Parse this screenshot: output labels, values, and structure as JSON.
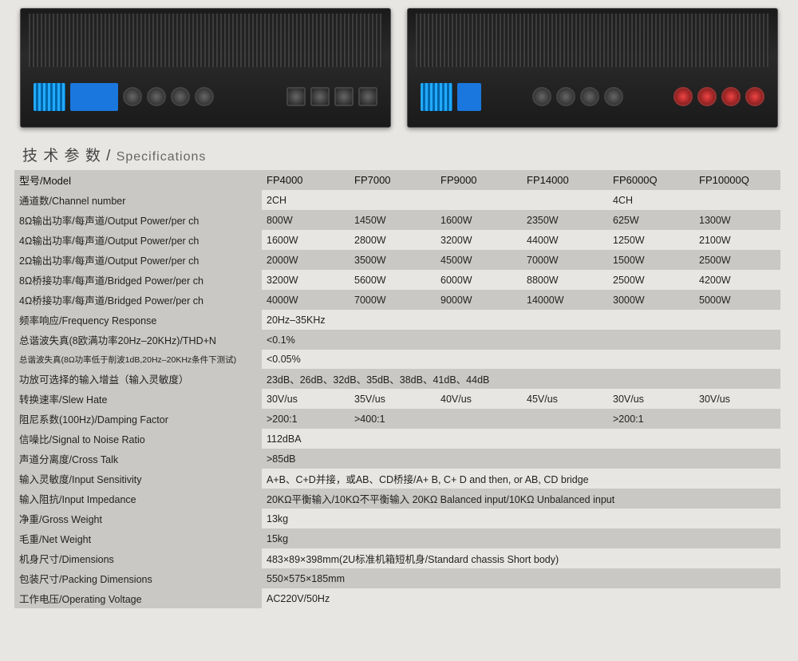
{
  "title_cn": "技 术 参 数",
  "title_sep": " / ",
  "title_en": "Specifications",
  "columns": [
    "FP4000",
    "FP7000",
    "FP9000",
    "FP14000",
    "FP6000Q",
    "FP10000Q"
  ],
  "rows": [
    {
      "label": "型号/Model",
      "vals": [
        "FP4000",
        "FP7000",
        "FP9000",
        "FP14000",
        "FP6000Q",
        "FP10000Q"
      ],
      "band": true,
      "header": true
    },
    {
      "label": "通道数/Channel number",
      "vals": [
        "2CH",
        "",
        "",
        "",
        "4CH",
        ""
      ]
    },
    {
      "label": "8Ω输出功率/每声道/Output Power/per ch",
      "vals": [
        "800W",
        "1450W",
        "1600W",
        "2350W",
        "625W",
        "1300W"
      ],
      "band": true
    },
    {
      "label": "4Ω输出功率/每声道/Output Power/per ch",
      "vals": [
        "1600W",
        "2800W",
        "3200W",
        "4400W",
        "1250W",
        "2100W"
      ]
    },
    {
      "label": "2Ω输出功率/每声道/Output Power/per ch",
      "vals": [
        "2000W",
        "3500W",
        "4500W",
        "7000W",
        "1500W",
        "2500W"
      ],
      "band": true
    },
    {
      "label": "8Ω桥接功率/每声道/Bridged Power/per ch",
      "vals": [
        "3200W",
        "5600W",
        "6000W",
        "8800W",
        "2500W",
        "4200W"
      ]
    },
    {
      "label": "4Ω桥接功率/每声道/Bridged Power/per ch",
      "vals": [
        "4000W",
        "7000W",
        "9000W",
        "14000W",
        "3000W",
        "5000W"
      ],
      "band": true
    },
    {
      "label": "频率响应/Frequency Response",
      "vals": [
        "20Hz–35KHz",
        "",
        "",
        "",
        "",
        ""
      ]
    },
    {
      "label": "总谐波失真(8欧满功率20Hz–20KHz)/THD+N",
      "vals": [
        "<0.1%",
        "",
        "",
        "",
        "",
        ""
      ],
      "band": true
    },
    {
      "label": "总谐波失真(8Ω功率低于削波1dB,20Hz–20KHz条件下测试)",
      "vals": [
        "<0.05%",
        "",
        "",
        "",
        "",
        ""
      ],
      "small": true
    },
    {
      "label": "功放可选择的输入增益（输入灵敏度）",
      "vals_span": "23dB、26dB、32dB、35dB、38dB、41dB、44dB",
      "band": true
    },
    {
      "label": "转换速率/Slew Hate",
      "vals": [
        "30V/us",
        "35V/us",
        "40V/us",
        "45V/us",
        "30V/us",
        "30V/us"
      ]
    },
    {
      "label": "阻尼系数(100Hz)/Damping Factor",
      "vals": [
        ">200:1",
        ">400:1",
        "",
        "",
        ">200:1",
        ""
      ],
      "band": true
    },
    {
      "label": "信噪比/Signal to Noise Ratio",
      "vals": [
        "112dBA",
        "",
        "",
        "",
        "",
        ""
      ]
    },
    {
      "label": "声道分离度/Cross Talk",
      "vals": [
        ">85dB",
        "",
        "",
        "",
        "",
        ""
      ],
      "band": true
    },
    {
      "label": "输入灵敏度/Input Sensitivity",
      "vals_span": "A+B、C+D并接，或AB、CD桥接/A+ B, C+ D and then, or AB, CD bridge"
    },
    {
      "label": "输入阻抗/Input Impedance",
      "vals_span": "20KΩ平衡输入/10KΩ不平衡输入    20KΩ Balanced input/10KΩ Unbalanced input",
      "band": true
    },
    {
      "label": "净重/Gross Weight",
      "vals": [
        "13kg",
        "",
        "",
        "",
        "",
        ""
      ]
    },
    {
      "label": "毛重/Net Weight",
      "vals": [
        "15kg",
        "",
        "",
        "",
        "",
        ""
      ],
      "band": true
    },
    {
      "label": "机身尺寸/Dimensions",
      "vals_span": "483×89×398mm(2U标准机箱短机身/Standard chassis Short body)"
    },
    {
      "label": "包装尺寸/Packing Dimensions",
      "vals": [
        "550×575×185mm",
        "",
        "",
        "",
        "",
        ""
      ],
      "band": true
    },
    {
      "label": "工作电压/Operating Voltage",
      "vals": [
        "AC220V/50Hz",
        "",
        "",
        "",
        "",
        ""
      ]
    }
  ],
  "colors": {
    "bg": "#e8e6e3",
    "band": "#c9c8c4",
    "text": "#222222"
  }
}
